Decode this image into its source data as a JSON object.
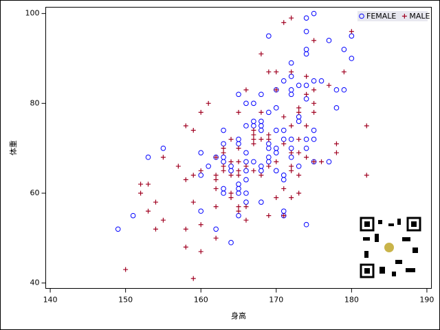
{
  "chart_data": {
    "type": "scatter",
    "x_label": "身高",
    "y_label": "体重",
    "xlim": [
      139.4,
      190.6
    ],
    "ylim": [
      38.8,
      101.4
    ],
    "xticks": [
      140,
      150,
      160,
      170,
      180,
      190
    ],
    "yticks": [
      40,
      60,
      80,
      100
    ],
    "legend": "top-right",
    "series": [
      {
        "name": "FEMALE",
        "color": "#0000ff",
        "marker": "circle",
        "x": [
          175,
          174,
          169,
          174,
          174,
          174,
          172,
          179,
          180,
          177,
          180,
          171,
          172,
          173,
          174,
          175,
          176,
          178,
          179,
          178,
          172,
          172,
          174,
          165,
          166,
          167,
          168,
          170,
          170,
          169,
          167,
          167,
          168,
          168,
          168,
          166,
          173,
          173,
          170,
          171,
          175,
          174,
          175,
          163,
          163,
          165,
          165,
          169,
          169,
          171,
          170,
          172,
          174,
          155,
          153,
          160,
          161,
          163,
          163,
          162,
          164,
          166,
          166,
          167,
          168,
          168,
          169,
          169,
          170,
          171,
          171,
          172,
          173,
          175,
          177,
          160,
          164,
          166,
          166,
          165,
          165,
          163,
          163,
          165,
          166,
          166,
          165,
          171,
          171,
          168,
          160,
          162,
          164,
          174,
          149,
          151,
          170,
          172
        ],
        "values": [
          100,
          99,
          95,
          96,
          92,
          91,
          89,
          92,
          90,
          94,
          95,
          85,
          86,
          84,
          84,
          85,
          85,
          83,
          83,
          79,
          83,
          82,
          81,
          82,
          80,
          80,
          82,
          83,
          79,
          78,
          76,
          75,
          76,
          75,
          74,
          75,
          76,
          77,
          74,
          74,
          74,
          72,
          72,
          74,
          71,
          71,
          72,
          71,
          70,
          72,
          70,
          70,
          70,
          70,
          68,
          69,
          66,
          68,
          67,
          68,
          66,
          69,
          67,
          67,
          66,
          65,
          68,
          67,
          65,
          64,
          63,
          68,
          66,
          67,
          67,
          64,
          65,
          65,
          63,
          62,
          61,
          61,
          60,
          60,
          60,
          58,
          55,
          56,
          55,
          58,
          56,
          52,
          49,
          53,
          52,
          55,
          69,
          72
        ]
      },
      {
        "name": "MALE",
        "color": "#a00020",
        "marker": "plus",
        "x": [
          172,
          171,
          180,
          175,
          168,
          179,
          169,
          170,
          172,
          174,
          177,
          166,
          174,
          175,
          170,
          173,
          175,
          175,
          160,
          165,
          168,
          161,
          171,
          173,
          172,
          174,
          182,
          158,
          159,
          167,
          167,
          167,
          167,
          168,
          169,
          169,
          171,
          172,
          173,
          178,
          178,
          164,
          163,
          165,
          155,
          162,
          163,
          163,
          164,
          165,
          166,
          167,
          169,
          170,
          172,
          173,
          174,
          175,
          176,
          157,
          159,
          160,
          162,
          162,
          163,
          164,
          165,
          165,
          168,
          172,
          173,
          182,
          158,
          152,
          153,
          152,
          162,
          164,
          164,
          165,
          166,
          171,
          170,
          172,
          173,
          154,
          159,
          162,
          165,
          153,
          171,
          169,
          166,
          155,
          160,
          154,
          158,
          162,
          158,
          160,
          150,
          159
        ],
        "values": [
          99,
          98,
          96,
          94,
          91,
          87,
          87,
          87,
          87,
          86,
          84,
          83,
          82,
          83,
          83,
          79,
          80,
          78,
          78,
          78,
          78,
          80,
          77,
          78,
          75,
          75,
          75,
          75,
          74,
          74,
          73,
          72,
          71,
          72,
          73,
          72,
          71,
          69,
          72,
          71,
          69,
          72,
          70,
          70,
          68,
          68,
          69,
          66,
          67,
          67,
          66,
          65,
          66,
          67,
          66,
          69,
          68,
          67,
          67,
          66,
          64,
          65,
          64,
          63,
          65,
          64,
          65,
          64,
          64,
          65,
          64,
          64,
          63,
          62,
          62,
          60,
          61,
          60,
          59,
          57,
          57,
          61,
          59,
          59,
          60,
          58,
          58,
          57,
          56,
          56,
          55,
          55,
          54,
          54,
          53,
          52,
          52,
          50,
          48,
          47,
          43,
          41
        ]
      }
    ]
  }
}
